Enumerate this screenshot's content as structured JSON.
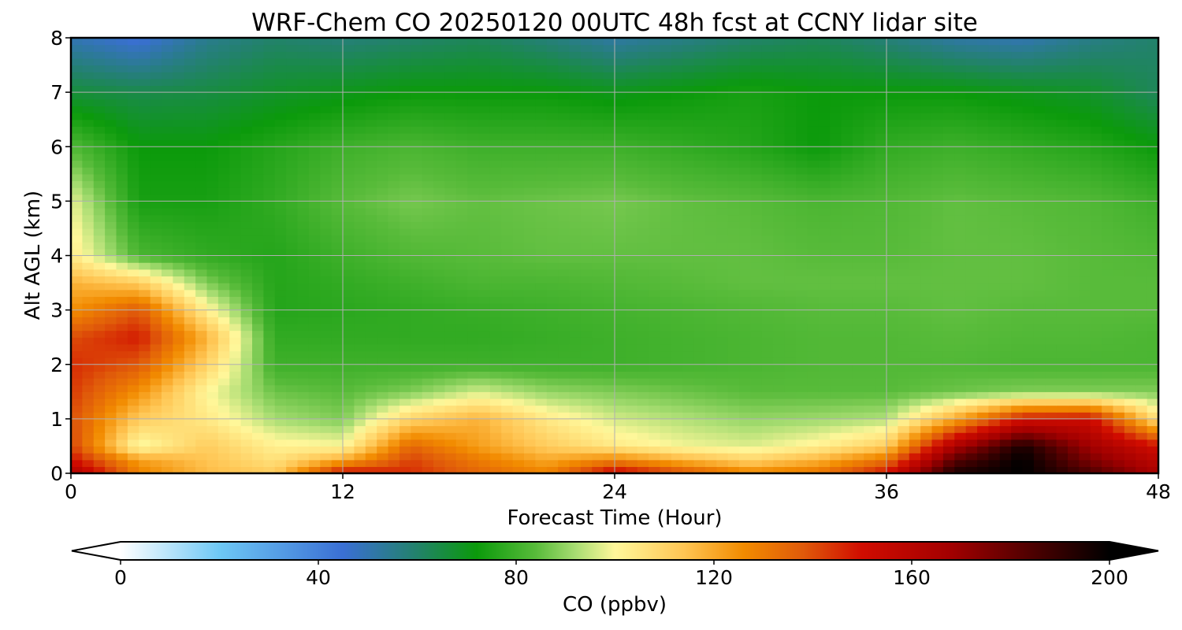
{
  "chart_data": {
    "type": "heatmap",
    "title": "WRF-Chem CO  20250120 00UTC 48h fcst at CCNY lidar site",
    "xlabel": "Forecast Time (Hour)",
    "ylabel": "Alt AGL (km)",
    "xlim": [
      0,
      48
    ],
    "ylim": [
      0,
      8
    ],
    "xticks": [
      0,
      12,
      24,
      36,
      48
    ],
    "yticks": [
      0,
      1,
      2,
      3,
      4,
      5,
      6,
      7,
      8
    ],
    "grid": true,
    "colorbar": {
      "label": "CO  (ppbv)",
      "range": [
        0,
        200
      ],
      "ticks": [
        0,
        40,
        80,
        120,
        160,
        200
      ],
      "extend": "both",
      "orientation": "horizontal",
      "position": "bottom",
      "stops": [
        {
          "value": 0,
          "color": "#ffffff"
        },
        {
          "value": 20,
          "color": "#6ec8f5"
        },
        {
          "value": 45,
          "color": "#3a6fd4"
        },
        {
          "value": 60,
          "color": "#22826a"
        },
        {
          "value": 72,
          "color": "#0b9a0b"
        },
        {
          "value": 84,
          "color": "#58bb3a"
        },
        {
          "value": 92,
          "color": "#a8dd72"
        },
        {
          "value": 100,
          "color": "#fff79a"
        },
        {
          "value": 114,
          "color": "#ffc553"
        },
        {
          "value": 126,
          "color": "#f28b00"
        },
        {
          "value": 138,
          "color": "#e05a0a"
        },
        {
          "value": 150,
          "color": "#d00c00"
        },
        {
          "value": 168,
          "color": "#a20000"
        },
        {
          "value": 185,
          "color": "#4a0000"
        },
        {
          "value": 200,
          "color": "#000000"
        }
      ]
    },
    "x": [
      0,
      3,
      6,
      9,
      12,
      15,
      18,
      21,
      24,
      27,
      30,
      33,
      36,
      39,
      42,
      45,
      48
    ],
    "y": [
      0,
      0.25,
      0.5,
      1,
      1.5,
      2,
      2.5,
      3,
      3.5,
      4,
      5,
      6,
      7,
      8
    ],
    "z": [
      [
        165,
        128,
        116,
        112,
        152,
        145,
        135,
        128,
        155,
        140,
        128,
        132,
        150,
        195,
        200,
        185,
        165
      ],
      [
        150,
        122,
        114,
        106,
        120,
        142,
        130,
        120,
        128,
        118,
        110,
        118,
        132,
        182,
        200,
        175,
        158
      ],
      [
        142,
        98,
        112,
        102,
        100,
        135,
        122,
        112,
        104,
        99,
        97,
        102,
        112,
        165,
        195,
        168,
        150
      ],
      [
        140,
        112,
        104,
        92,
        88,
        110,
        118,
        104,
        96,
        93,
        90,
        91,
        93,
        120,
        150,
        152,
        106
      ],
      [
        143,
        125,
        100,
        86,
        84,
        88,
        96,
        90,
        88,
        86,
        84,
        84,
        84,
        86,
        88,
        88,
        88
      ],
      [
        145,
        138,
        110,
        80,
        80,
        80,
        80,
        80,
        80,
        81,
        82,
        83,
        83,
        83,
        82,
        82,
        82
      ],
      [
        140,
        148,
        118,
        78,
        78,
        78,
        78,
        79,
        80,
        81,
        82,
        83,
        83,
        84,
        83,
        83,
        82
      ],
      [
        125,
        138,
        102,
        76,
        77,
        78,
        79,
        80,
        81,
        82,
        83,
        84,
        84,
        85,
        84,
        84,
        84
      ],
      [
        118,
        112,
        88,
        76,
        78,
        80,
        82,
        82,
        83,
        84,
        85,
        85,
        85,
        85,
        85,
        84,
        84
      ],
      [
        104,
        82,
        78,
        76,
        80,
        83,
        84,
        85,
        85,
        85,
        85,
        84,
        84,
        85,
        85,
        84,
        83
      ],
      [
        98,
        74,
        74,
        78,
        84,
        87,
        85,
        86,
        87,
        85,
        84,
        82,
        83,
        85,
        84,
        83,
        80
      ],
      [
        83,
        72,
        72,
        76,
        80,
        82,
        80,
        80,
        80,
        78,
        76,
        72,
        78,
        80,
        78,
        76,
        72
      ],
      [
        66,
        64,
        65,
        68,
        70,
        72,
        72,
        72,
        70,
        72,
        74,
        72,
        72,
        72,
        70,
        68,
        62
      ],
      [
        50,
        44,
        55,
        60,
        58,
        60,
        62,
        58,
        52,
        56,
        60,
        62,
        58,
        52,
        50,
        56,
        60
      ]
    ]
  }
}
